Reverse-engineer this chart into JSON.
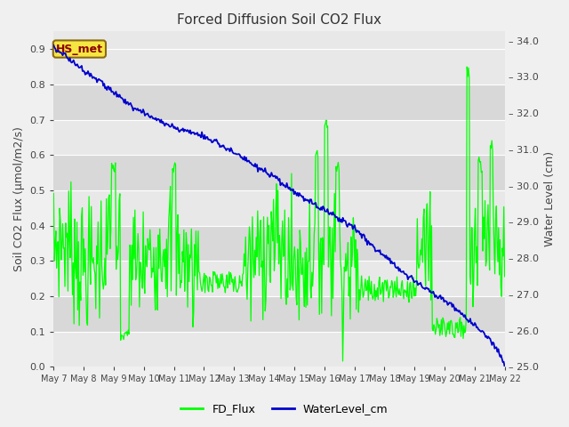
{
  "title": "Forced Diffusion Soil CO2 Flux",
  "ylabel_left": "Soil CO2 Flux (μmol/m2/s)",
  "ylabel_right": "Water Level (cm)",
  "xlim": [
    0,
    15.5
  ],
  "ylim_left": [
    0.0,
    0.95
  ],
  "ylim_right": [
    25.0,
    34.25
  ],
  "yticks_left": [
    0.0,
    0.1,
    0.2,
    0.3,
    0.4,
    0.5,
    0.6,
    0.7,
    0.8,
    0.9
  ],
  "yticks_right": [
    25.0,
    26.0,
    27.0,
    28.0,
    29.0,
    30.0,
    31.0,
    32.0,
    33.0,
    34.0
  ],
  "xtick_labels": [
    "May 7",
    "May 8",
    "May 9",
    "May 10",
    "May 11",
    "May 12",
    "May 13",
    "May 14",
    "May 15",
    "May 16",
    "May 17",
    "May 18",
    "May 19",
    "May 20",
    "May 21",
    "May 22"
  ],
  "fd_flux_color": "#00ff00",
  "water_level_color": "#0000cd",
  "fig_bg_color": "#f0f0f0",
  "plot_bg_light": "#e8e8e8",
  "plot_bg_dark": "#d8d8d8",
  "station_label": "HS_met",
  "station_label_color": "#8b0000",
  "station_box_facecolor": "#f5e642",
  "station_box_edgecolor": "#8b6914",
  "title_fontsize": 11,
  "axis_label_fontsize": 9,
  "tick_fontsize": 8,
  "legend_fontsize": 9,
  "grid_color": "#ffffff",
  "water_level_points_t": [
    0.0,
    0.3,
    0.6,
    1.0,
    1.4,
    1.7,
    2.0,
    2.4,
    2.8,
    3.2,
    3.6,
    4.0,
    4.3,
    4.7,
    5.0,
    5.3,
    5.6,
    6.0,
    6.4,
    6.8,
    7.2,
    7.5,
    7.8,
    8.1,
    8.5,
    8.8,
    9.0,
    9.3,
    9.6,
    10.0,
    10.4,
    10.7,
    11.0,
    11.3,
    11.6,
    11.9,
    12.2,
    12.5,
    12.8,
    13.1,
    13.5,
    13.8,
    14.1,
    14.4,
    14.7,
    15.0,
    15.3,
    15.5
  ],
  "water_level_points_v": [
    33.8,
    33.65,
    33.45,
    33.2,
    33.0,
    32.8,
    32.6,
    32.35,
    32.15,
    31.95,
    31.8,
    31.65,
    31.55,
    31.48,
    31.4,
    31.3,
    31.2,
    31.0,
    30.8,
    30.6,
    30.4,
    30.25,
    30.1,
    29.9,
    29.7,
    29.55,
    29.45,
    29.35,
    29.2,
    29.0,
    28.8,
    28.55,
    28.3,
    28.1,
    27.9,
    27.7,
    27.5,
    27.3,
    27.15,
    27.0,
    26.8,
    26.6,
    26.4,
    26.2,
    26.0,
    25.75,
    25.4,
    25.05
  ]
}
